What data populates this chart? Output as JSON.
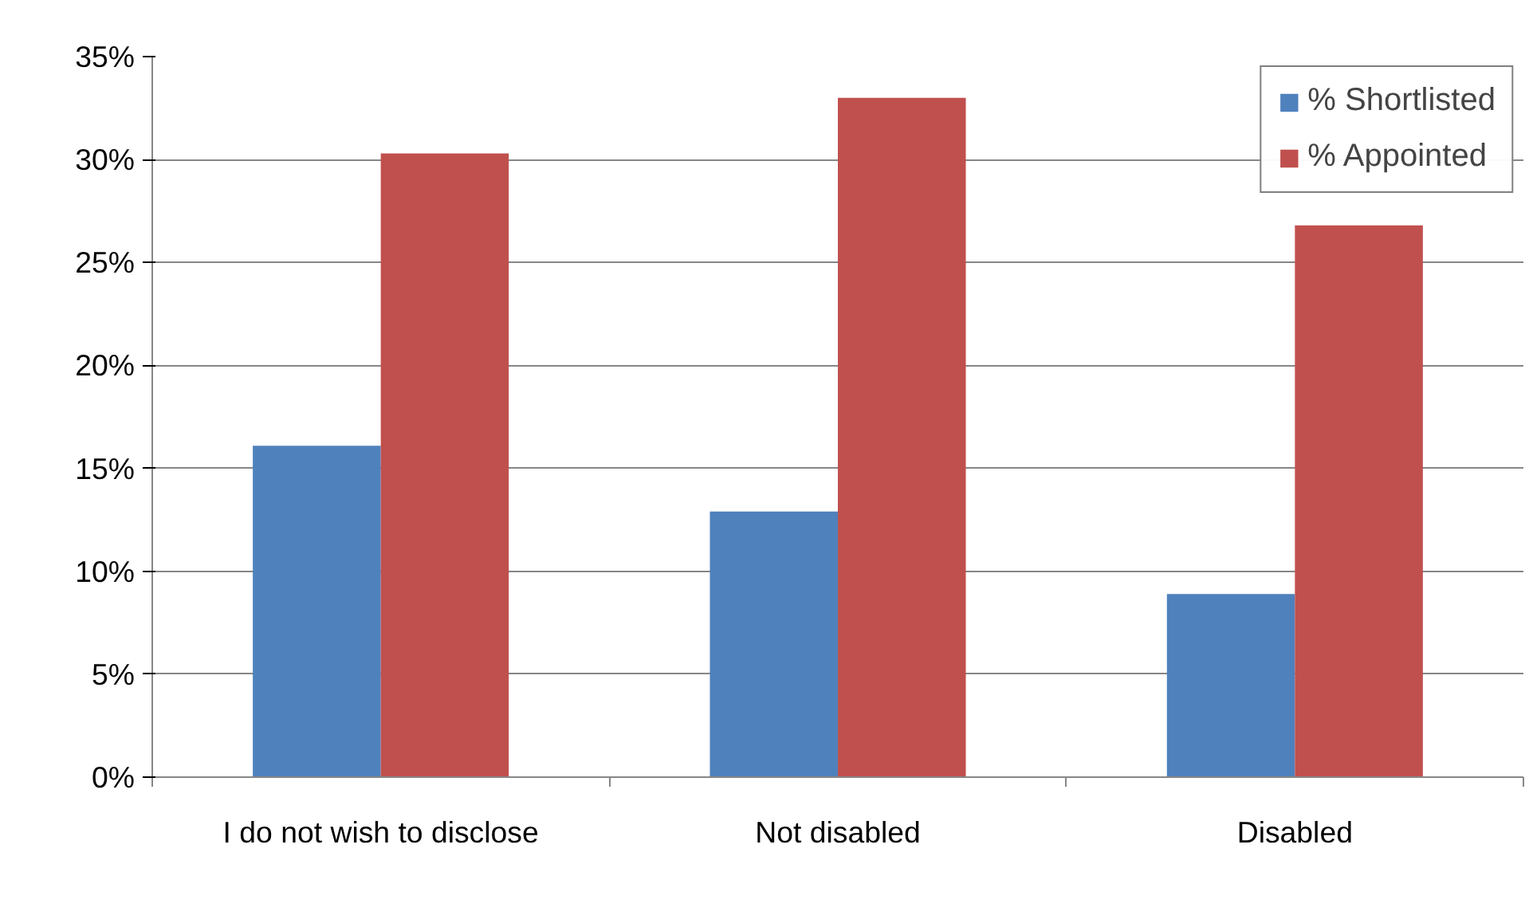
{
  "chart_data": {
    "type": "bar",
    "categories": [
      "I do not wish to disclose",
      "Not disabled",
      "Disabled"
    ],
    "series": [
      {
        "name": "% Shortlisted",
        "color": "#4f81bd",
        "values": [
          16.1,
          12.9,
          8.9
        ]
      },
      {
        "name": "% Appointed",
        "color": "#c0504d",
        "values": [
          30.3,
          33.0,
          26.8
        ]
      }
    ],
    "ylim": [
      0,
      35
    ],
    "yticks": [
      {
        "value": 0,
        "label": "0%"
      },
      {
        "value": 5,
        "label": "5%"
      },
      {
        "value": 10,
        "label": "10%"
      },
      {
        "value": 15,
        "label": "15%"
      },
      {
        "value": 20,
        "label": "20%"
      },
      {
        "value": 25,
        "label": "25%"
      },
      {
        "value": 30,
        "label": "30%"
      },
      {
        "value": 35,
        "label": "35%"
      }
    ],
    "grid": "y",
    "legend": "top right"
  }
}
